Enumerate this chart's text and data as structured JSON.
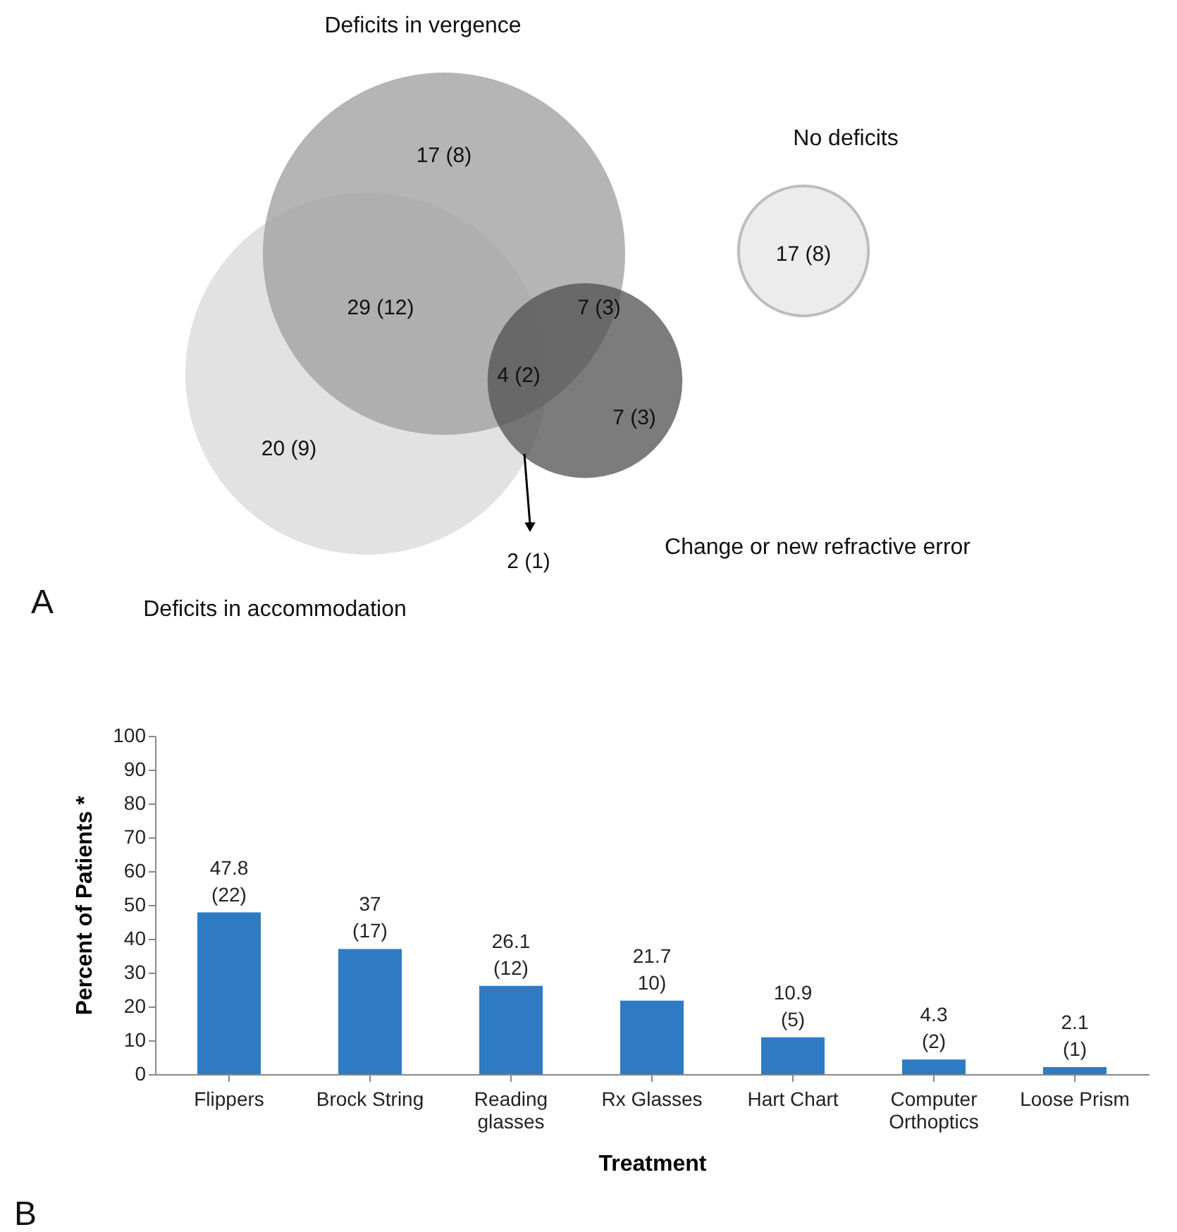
{
  "chart_data": [
    {
      "type": "other",
      "categories": [
        "Deficits in vergence",
        "No deficits",
        "Change or new refractive error",
        "Deficits in accommodation"
      ],
      "annotations": [
        "17 (8)",
        "29 (12)",
        "7 (3)",
        "4 (2)",
        "7 (3)",
        "20 (9)",
        "2 (1)",
        "17 (8)",
        "A"
      ]
    },
    {
      "type": "bar",
      "categories": [
        "Flippers",
        "Brock String",
        "Reading glasses",
        "Rx Glasses",
        "Hart Chart",
        "Computer Orthoptics",
        "Loose Prism"
      ],
      "values": [
        47.8,
        37,
        26.1,
        21.7,
        10.9,
        4.3,
        2.1
      ],
      "color": "#2e7bc4",
      "value_labels": [
        "47.8 (22)",
        "37 (17)",
        "26.1 (12)",
        "21.7 10)",
        "10.9 (5)",
        "4.3 (2)",
        "2.1 (1)"
      ],
      "xlabel": "Treatment",
      "ylabel": "Percent of Patients *",
      "ylim": [
        0,
        100
      ],
      "yticks": [
        0,
        10,
        20,
        30,
        40,
        50,
        60,
        70,
        80,
        90,
        100
      ],
      "grid": false,
      "annotations": [
        "B"
      ]
    }
  ]
}
